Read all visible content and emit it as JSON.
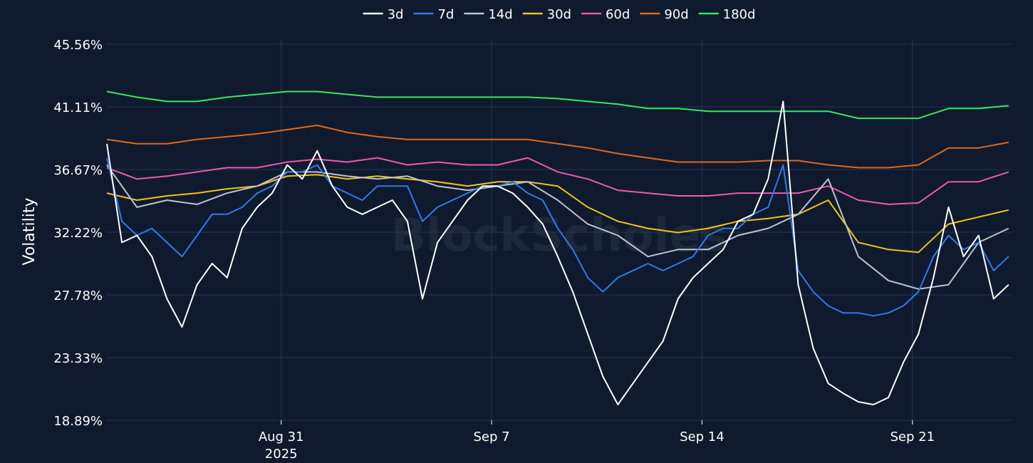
{
  "chart_data": {
    "type": "line",
    "ylabel": "Volatility",
    "ylim": [
      18.89,
      45.56
    ],
    "y_ticks": [
      "45.56%",
      "41.11%",
      "36.67%",
      "32.22%",
      "27.78%",
      "23.33%",
      "18.89%"
    ],
    "x_ticks": [
      {
        "label": "Aug 31",
        "sublabel": "2025",
        "x": 5.8
      },
      {
        "label": "Sep 7",
        "sublabel": "",
        "x": 12.8
      },
      {
        "label": "Sep 14",
        "sublabel": "",
        "x": 19.8
      },
      {
        "label": "Sep 21",
        "sublabel": "",
        "x": 26.8
      }
    ],
    "xlim": [
      0,
      30.1
    ],
    "grid": true,
    "legend_position": "top-center",
    "watermark": "BlockScholes",
    "series": [
      {
        "name": "3d",
        "color": "#ffffff",
        "x": [
          0,
          0.5,
          1,
          1.5,
          2,
          2.5,
          3,
          3.5,
          4,
          4.5,
          5,
          5.5,
          6,
          6.5,
          7,
          7.5,
          8,
          8.5,
          9,
          9.5,
          10,
          10.5,
          11,
          11.5,
          12,
          12.5,
          13,
          13.5,
          14,
          14.5,
          15,
          15.5,
          16,
          16.5,
          17,
          17.5,
          18,
          18.5,
          19,
          19.5,
          20,
          20.5,
          21,
          21.5,
          22,
          22.5,
          23,
          23.5,
          24,
          24.5,
          25,
          25.5,
          26,
          26.5,
          27,
          27.5,
          28,
          28.5,
          29,
          29.5,
          30
        ],
        "values": [
          38.5,
          31.5,
          32,
          30.5,
          27.5,
          25.5,
          28.5,
          30,
          29,
          32.5,
          34,
          35,
          37,
          36,
          38,
          35.5,
          34,
          33.5,
          34,
          34.5,
          33,
          27.5,
          31.5,
          33,
          34.5,
          35.5,
          35.5,
          35,
          34,
          32.8,
          30.5,
          28,
          25,
          22,
          20,
          21.5,
          23,
          24.5,
          27.5,
          29,
          30,
          31,
          33,
          33.5,
          36,
          41.5,
          28.5,
          24,
          21.5,
          20.8,
          20.2,
          20,
          20.5,
          23,
          25,
          29,
          34,
          30.5,
          32,
          27.5,
          28.5
        ]
      },
      {
        "name": "7d",
        "color": "#2f7be8",
        "x": [
          0,
          0.5,
          1,
          1.5,
          2,
          2.5,
          3,
          3.5,
          4,
          4.5,
          5,
          5.5,
          6,
          6.5,
          7,
          7.5,
          8,
          8.5,
          9,
          9.5,
          10,
          10.5,
          11,
          11.5,
          12,
          12.5,
          13,
          13.5,
          14,
          14.5,
          15,
          15.5,
          16,
          16.5,
          17,
          17.5,
          18,
          18.5,
          19,
          19.5,
          20,
          20.5,
          21,
          21.5,
          22,
          22.5,
          23,
          23.5,
          24,
          24.5,
          25,
          25.5,
          26,
          26.5,
          27,
          27.5,
          28,
          28.5,
          29,
          29.5,
          30
        ],
        "values": [
          37.5,
          33,
          32,
          32.5,
          31.5,
          30.5,
          32,
          33.5,
          33.5,
          34,
          35,
          35.5,
          36.5,
          36.5,
          37,
          35.5,
          35,
          34.5,
          35.5,
          35.5,
          35.5,
          33,
          34,
          34.5,
          35,
          35.5,
          35.5,
          35.8,
          35,
          34.5,
          32.5,
          31,
          29,
          28,
          29,
          29.5,
          30,
          29.5,
          30,
          30.5,
          32,
          32.5,
          32.5,
          33.5,
          34,
          37,
          29.5,
          28,
          27,
          26.5,
          26.5,
          26.3,
          26.5,
          27,
          28,
          30.5,
          32,
          31,
          31.5,
          29.5,
          30.5
        ]
      },
      {
        "name": "14d",
        "color": "#c0c4cc",
        "x": [
          0,
          1,
          2,
          3,
          4,
          5,
          6,
          7,
          8,
          9,
          10,
          11,
          12,
          13,
          14,
          15,
          16,
          17,
          18,
          19,
          20,
          21,
          22,
          23,
          24,
          25,
          26,
          27,
          28,
          29,
          30
        ],
        "values": [
          37,
          34,
          34.5,
          34.2,
          35,
          35.5,
          36.5,
          36.5,
          36.2,
          36,
          36.2,
          35.5,
          35.2,
          35.5,
          35.8,
          34.5,
          32.8,
          32,
          30.5,
          31,
          31,
          32,
          32.5,
          33.5,
          36,
          30.5,
          28.8,
          28.2,
          28.5,
          31.5,
          32.5
        ]
      },
      {
        "name": "30d",
        "color": "#f2c318",
        "x": [
          0,
          1,
          2,
          3,
          4,
          5,
          6,
          7,
          8,
          9,
          10,
          11,
          12,
          13,
          14,
          15,
          16,
          17,
          18,
          19,
          20,
          21,
          22,
          23,
          24,
          25,
          26,
          27,
          28,
          29,
          30
        ],
        "values": [
          35,
          34.5,
          34.8,
          35,
          35.3,
          35.5,
          36.2,
          36.3,
          36,
          36.2,
          36,
          35.8,
          35.5,
          35.8,
          35.8,
          35.5,
          34,
          33,
          32.5,
          32.2,
          32.5,
          33,
          33.2,
          33.5,
          34.5,
          31.5,
          31,
          30.8,
          32.8,
          33.3,
          33.8
        ]
      },
      {
        "name": "60d",
        "color": "#ef57b0",
        "x": [
          0,
          1,
          2,
          3,
          4,
          5,
          6,
          7,
          8,
          9,
          10,
          11,
          12,
          13,
          14,
          15,
          16,
          17,
          18,
          19,
          20,
          21,
          22,
          23,
          24,
          25,
          26,
          27,
          28,
          29,
          30
        ],
        "values": [
          36.8,
          36,
          36.2,
          36.5,
          36.8,
          36.8,
          37.2,
          37.4,
          37.2,
          37.5,
          37,
          37.2,
          37,
          37,
          37.5,
          36.5,
          36,
          35.2,
          35,
          34.8,
          34.8,
          35,
          35,
          35,
          35.5,
          34.5,
          34.2,
          34.3,
          35.8,
          35.8,
          36.5
        ]
      },
      {
        "name": "90d",
        "color": "#e06818",
        "x": [
          0,
          1,
          2,
          3,
          4,
          5,
          6,
          7,
          8,
          9,
          10,
          11,
          12,
          13,
          14,
          15,
          16,
          17,
          18,
          19,
          20,
          21,
          22,
          23,
          24,
          25,
          26,
          27,
          28,
          29,
          30
        ],
        "values": [
          38.8,
          38.5,
          38.5,
          38.8,
          39,
          39.2,
          39.5,
          39.8,
          39.3,
          39,
          38.8,
          38.8,
          38.8,
          38.8,
          38.8,
          38.5,
          38.2,
          37.8,
          37.5,
          37.2,
          37.2,
          37.2,
          37.3,
          37.3,
          37,
          36.8,
          36.8,
          37,
          38.2,
          38.2,
          38.6
        ]
      },
      {
        "name": "180d",
        "color": "#39e85a",
        "x": [
          0,
          1,
          2,
          3,
          4,
          5,
          6,
          7,
          8,
          9,
          10,
          11,
          12,
          13,
          14,
          15,
          16,
          17,
          18,
          19,
          20,
          21,
          22,
          23,
          24,
          25,
          26,
          27,
          28,
          29,
          30
        ],
        "values": [
          42.2,
          41.8,
          41.5,
          41.5,
          41.8,
          42,
          42.2,
          42.2,
          42,
          41.8,
          41.8,
          41.8,
          41.8,
          41.8,
          41.8,
          41.7,
          41.5,
          41.3,
          41,
          41,
          40.8,
          40.8,
          40.8,
          40.8,
          40.8,
          40.3,
          40.3,
          40.3,
          41,
          41,
          41.2
        ]
      }
    ]
  }
}
